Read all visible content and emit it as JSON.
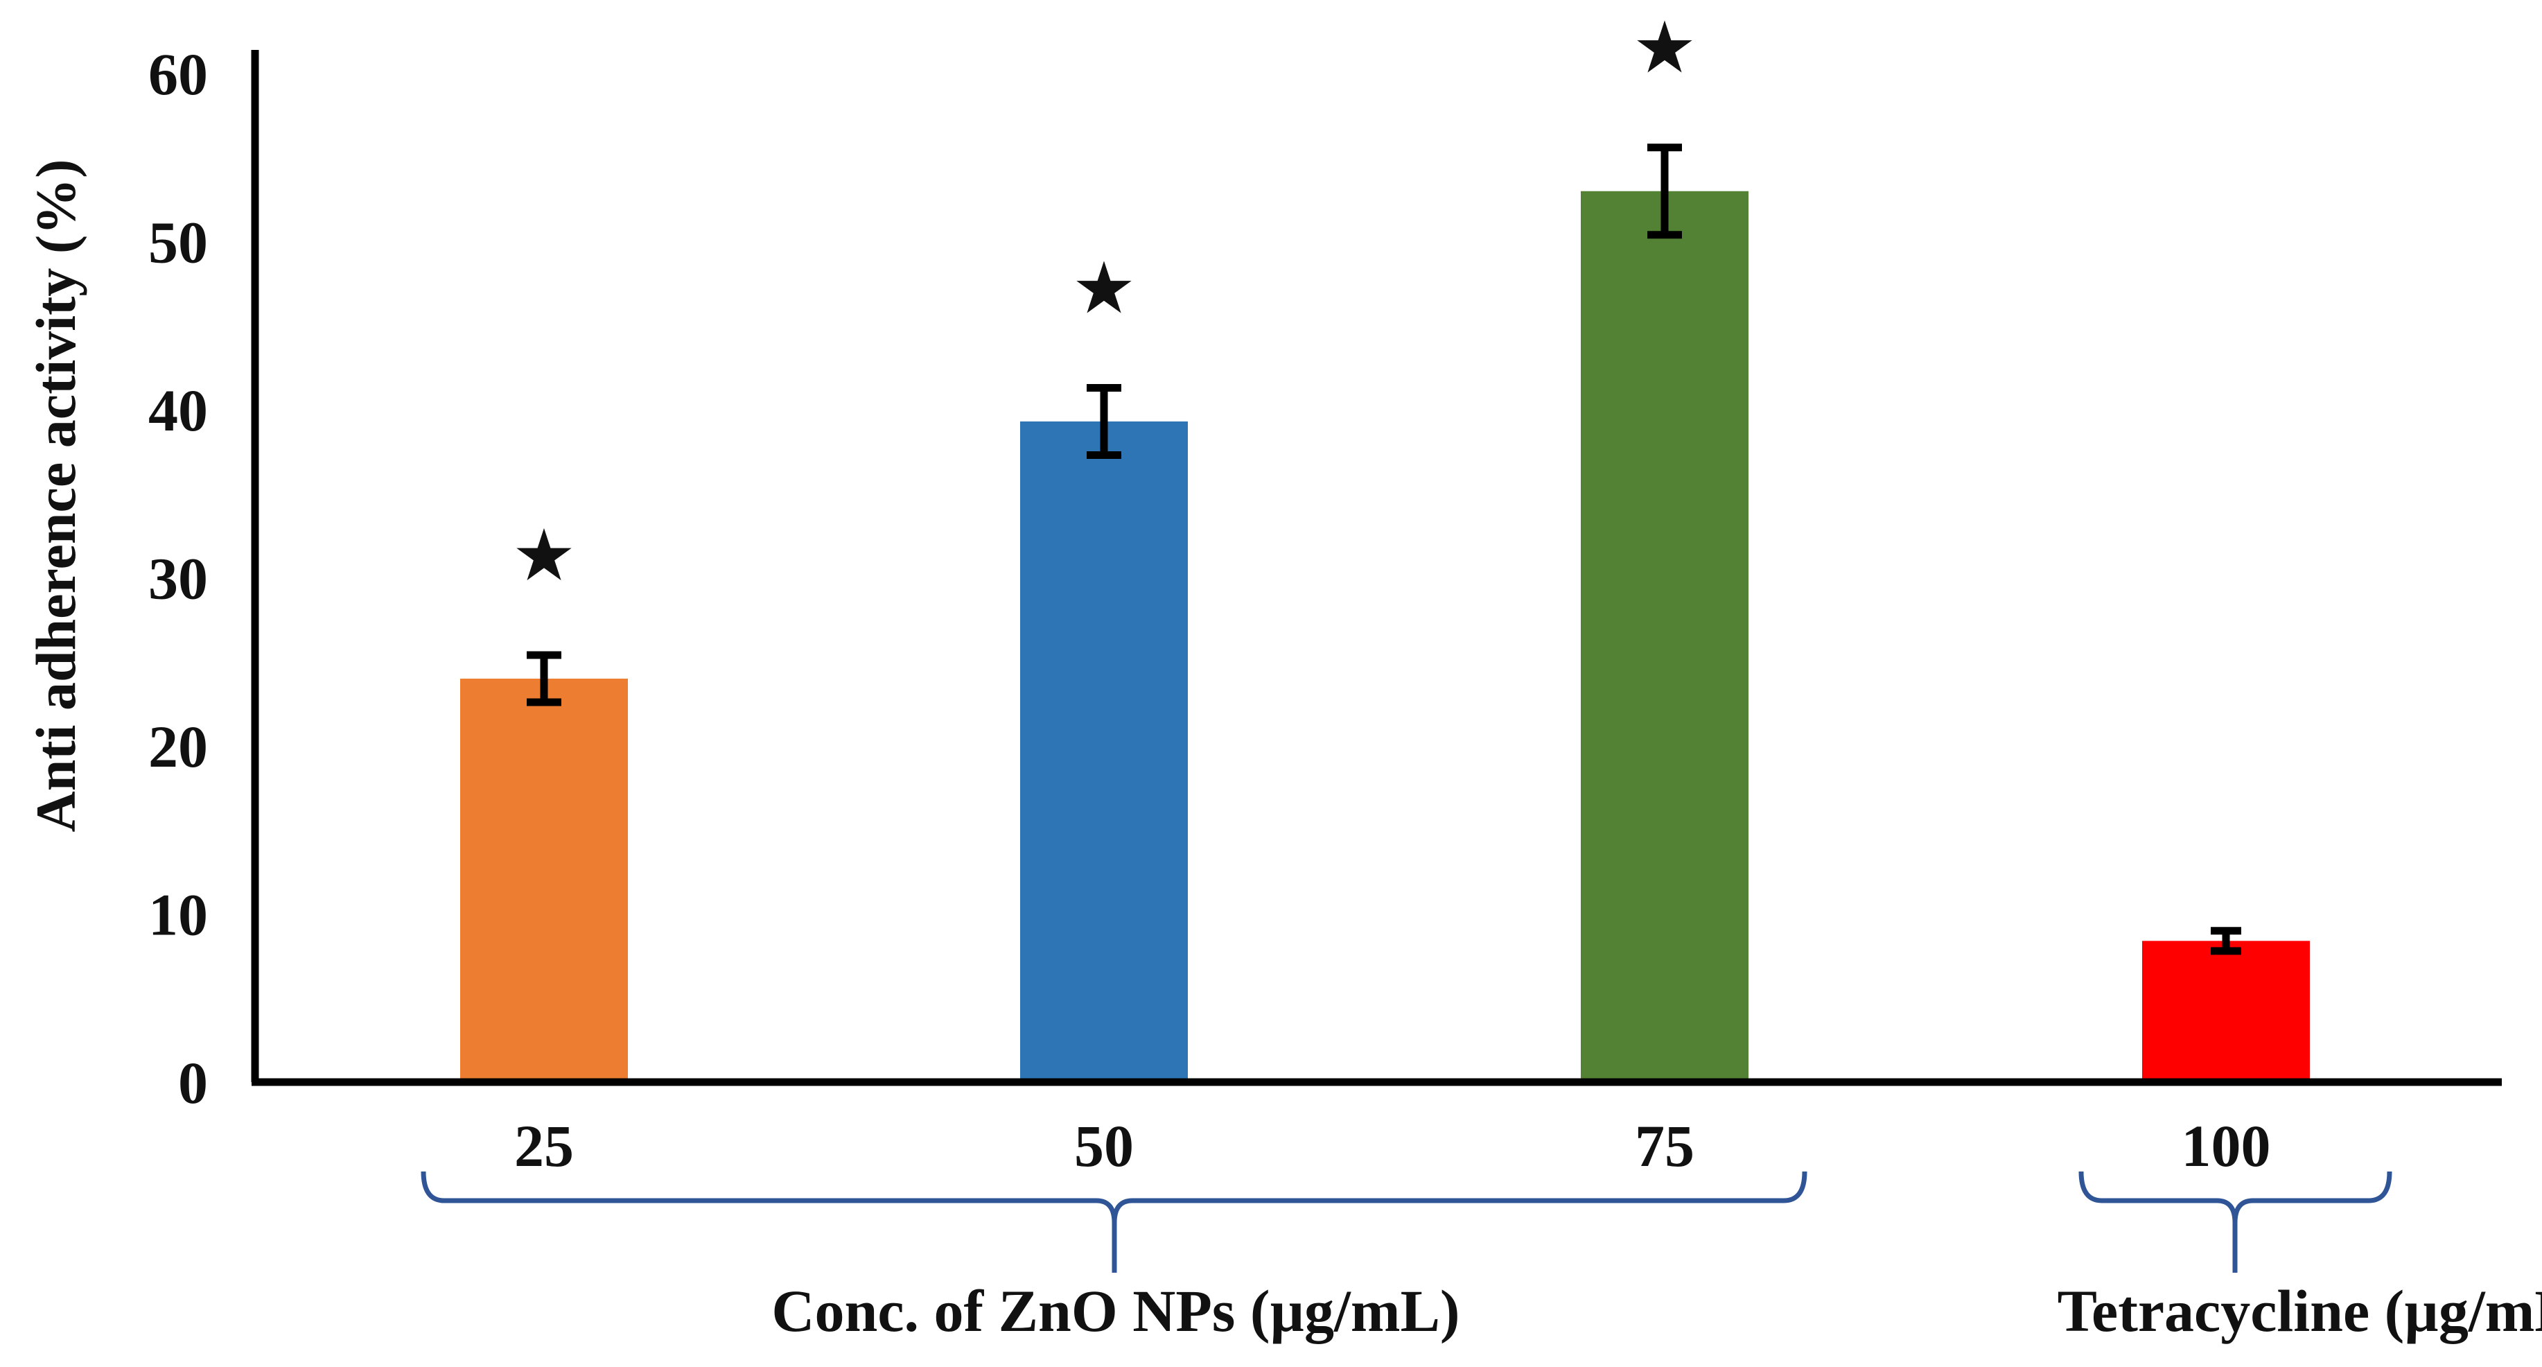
{
  "chart_data": {
    "type": "bar",
    "title": "",
    "xlabel": "",
    "ylabel": "Anti adherence activity (%)",
    "ylim": [
      0,
      60
    ],
    "yticks": [
      0,
      10,
      20,
      30,
      40,
      50,
      60
    ],
    "grid": false,
    "categories": [
      "25",
      "50",
      "75",
      "100"
    ],
    "values": [
      24,
      39.3,
      53,
      8.4
    ],
    "errors": [
      1.4,
      2.0,
      2.6,
      0.6
    ],
    "significance": [
      "★",
      "★",
      "★",
      ""
    ],
    "colors": [
      "#ED7D31",
      "#2E75B6",
      "#548235",
      "#FF0000"
    ],
    "groups": [
      {
        "label": "Conc. of ZnO NPs (µg/mL)",
        "categories": [
          "25",
          "50",
          "75"
        ]
      },
      {
        "label": "Tetracycline (µg/mL)",
        "categories": [
          "100"
        ]
      }
    ],
    "bracket_color": "#2F5597"
  }
}
